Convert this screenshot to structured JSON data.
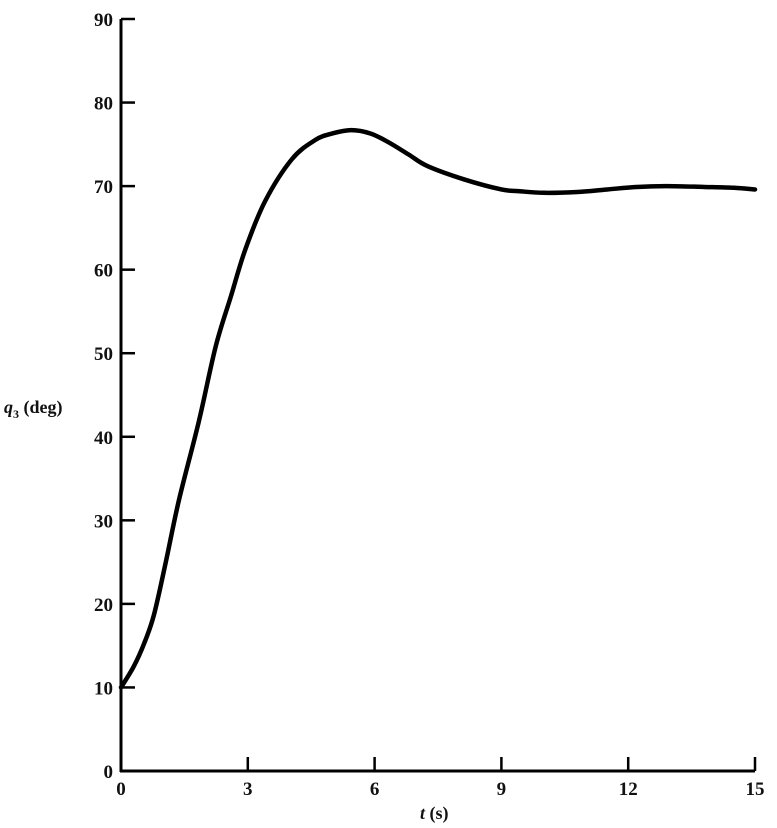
{
  "chart_data": {
    "type": "line",
    "title": "",
    "xlabel": "t (s)",
    "xlabel_var": "t",
    "xlabel_unit": " (s)",
    "ylabel": "q3 (deg)",
    "ylabel_var": "q",
    "ylabel_sub": "3",
    "ylabel_unit": " (deg)",
    "xlim": [
      0,
      15
    ],
    "ylim": [
      0,
      90
    ],
    "xticks": [
      0,
      3,
      6,
      9,
      12,
      15
    ],
    "yticks": [
      0,
      10,
      20,
      30,
      40,
      50,
      60,
      70,
      80,
      90
    ],
    "grid": false,
    "line_color": "#000000",
    "series": [
      {
        "x": [
          0,
          0.3,
          0.55,
          0.78,
          1.06,
          1.37,
          1.84,
          2.24,
          2.6,
          2.94,
          3.41,
          4.04,
          4.59,
          5.0,
          5.45,
          5.9,
          6.31,
          6.8,
          7.25,
          8.12,
          9.0,
          9.4,
          10.0,
          10.8,
          11.5,
          12.2,
          12.9,
          13.8,
          14.5,
          15
        ],
        "y": [
          10,
          12.5,
          15.3,
          18.7,
          25,
          32.4,
          41.8,
          50.8,
          56.8,
          62.4,
          68.2,
          73.2,
          75.5,
          76.3,
          76.7,
          76.3,
          75.3,
          73.8,
          72.4,
          70.8,
          69.6,
          69.4,
          69.2,
          69.3,
          69.6,
          69.9,
          70.0,
          69.9,
          69.8,
          69.6
        ]
      }
    ]
  }
}
